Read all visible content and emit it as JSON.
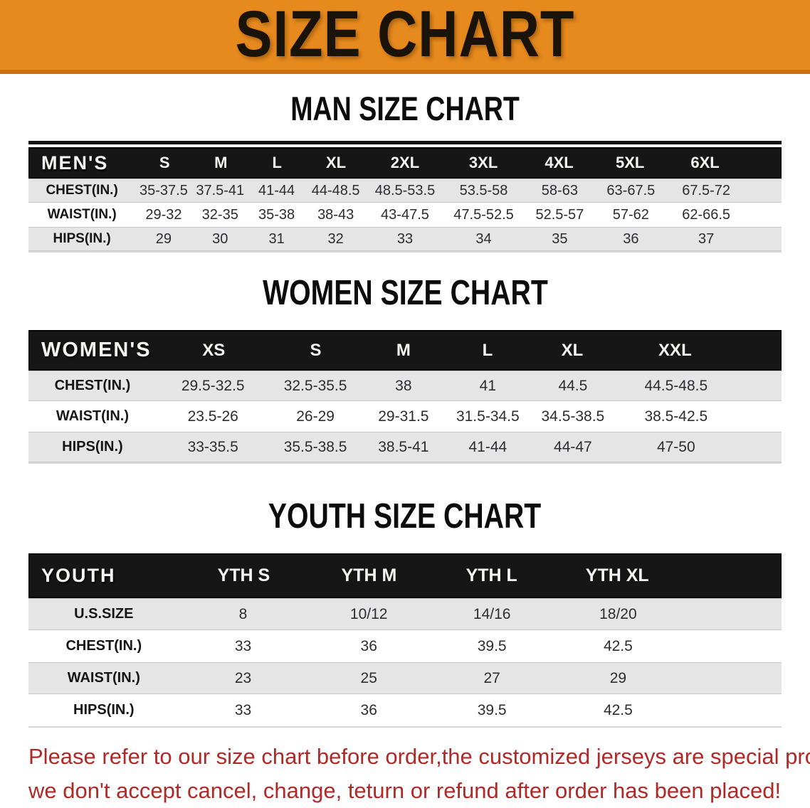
{
  "banner": {
    "title": "SIZE CHART",
    "bg_color": "#e78a1e",
    "border_color": "#c9700f",
    "text_color": "#1a1309"
  },
  "sections": [
    {
      "title": "MAN SIZE CHART",
      "table": {
        "header": [
          "MEN'S",
          "S",
          "M",
          "L",
          "XL",
          "2XL",
          "3XL",
          "4XL",
          "5XL",
          "6XL"
        ],
        "rows": [
          [
            "CHEST(IN.)",
            "35-37.5",
            "37.5-41",
            "41-44",
            "44-48.5",
            "48.5-53.5",
            "53.5-58",
            "58-63",
            "63-67.5",
            "67.5-72"
          ],
          [
            "WAIST(IN.)",
            "29-32",
            "32-35",
            "35-38",
            "38-43",
            "43-47.5",
            "47.5-52.5",
            "52.5-57",
            "57-62",
            "62-66.5"
          ],
          [
            "HIPS(IN.)",
            "29",
            "30",
            "31",
            "32",
            "33",
            "34",
            "35",
            "36",
            "37"
          ]
        ]
      }
    },
    {
      "title": "WOMEN SIZE CHART",
      "table": {
        "header": [
          "WOMEN'S",
          "XS",
          "S",
          "M",
          "L",
          "XL",
          "XXL"
        ],
        "rows": [
          [
            "CHEST(IN.)",
            "29.5-32.5",
            "32.5-35.5",
            "38",
            "41",
            "44.5",
            "44.5-48.5"
          ],
          [
            "WAIST(IN.)",
            "23.5-26",
            "26-29",
            "29-31.5",
            "31.5-34.5",
            "34.5-38.5",
            "38.5-42.5"
          ],
          [
            "HIPS(IN.)",
            "33-35.5",
            "35.5-38.5",
            "38.5-41",
            "41-44",
            "44-47",
            "47-50"
          ]
        ]
      }
    },
    {
      "title": "YOUTH SIZE CHART",
      "table": {
        "header": [
          "YOUTH",
          "YTH S",
          "YTH M",
          "YTH L",
          "YTH XL"
        ],
        "rows": [
          [
            "U.S.SIZE",
            "8",
            "10/12",
            "14/16",
            "18/20"
          ],
          [
            "CHEST(IN.)",
            "33",
            "36",
            "39.5",
            "42.5"
          ],
          [
            "WAIST(IN.)",
            "23",
            "25",
            "27",
            "29"
          ],
          [
            "HIPS(IN.)",
            "33",
            "36",
            "39.5",
            "42.5"
          ]
        ]
      }
    }
  ],
  "footer": {
    "color": "#ae2a28",
    "lines": [
      "Please refer to our size chart before order,the customized jerseys are special products,",
      "we don't accept cancel, change, teturn or refund after order has been placed!"
    ]
  },
  "colors": {
    "stripe_gray": "#e5e5e6",
    "header_bar": "#161616",
    "data_text": "#2d2d30"
  }
}
